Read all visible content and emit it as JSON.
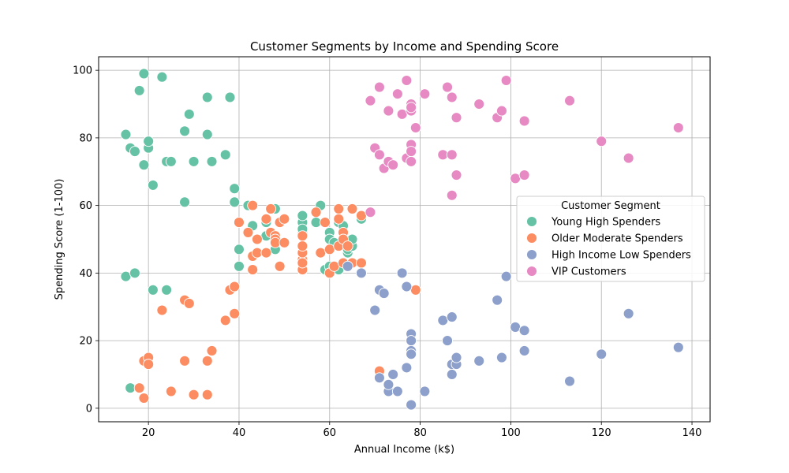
{
  "chart_data": {
    "type": "scatter",
    "title": "Customer Segments by Income and Spending Score",
    "xlabel": "Annual Income (k$)",
    "ylabel": "Spending Score (1-100)",
    "xlim": [
      9,
      144
    ],
    "ylim": [
      -4,
      104
    ],
    "xticks": [
      20,
      40,
      60,
      80,
      100,
      120,
      140
    ],
    "yticks": [
      0,
      20,
      40,
      60,
      80,
      100
    ],
    "grid": true,
    "legend": {
      "title": "Customer Segment",
      "placement": "center-right"
    },
    "series": [
      {
        "name": "Young High Spenders",
        "color": "#66c2a5",
        "points": [
          [
            15,
            39
          ],
          [
            15,
            81
          ],
          [
            16,
            6
          ],
          [
            16,
            77
          ],
          [
            17,
            40
          ],
          [
            17,
            76
          ],
          [
            18,
            94
          ],
          [
            19,
            72
          ],
          [
            19,
            99
          ],
          [
            20,
            77
          ],
          [
            20,
            79
          ],
          [
            21,
            35
          ],
          [
            21,
            66
          ],
          [
            23,
            98
          ],
          [
            24,
            35
          ],
          [
            24,
            73
          ],
          [
            25,
            73
          ],
          [
            28,
            82
          ],
          [
            28,
            61
          ],
          [
            29,
            87
          ],
          [
            30,
            73
          ],
          [
            33,
            92
          ],
          [
            33,
            81
          ],
          [
            34,
            73
          ],
          [
            37,
            75
          ],
          [
            38,
            92
          ],
          [
            39,
            61
          ],
          [
            39,
            65
          ],
          [
            40,
            47
          ],
          [
            40,
            42
          ],
          [
            42,
            60
          ],
          [
            43,
            54
          ],
          [
            46,
            55
          ],
          [
            46,
            51
          ],
          [
            48,
            59
          ],
          [
            48,
            47
          ],
          [
            54,
            52
          ],
          [
            54,
            55
          ],
          [
            54,
            57
          ],
          [
            54,
            53
          ],
          [
            57,
            55
          ],
          [
            58,
            60
          ],
          [
            59,
            41
          ],
          [
            60,
            52
          ],
          [
            60,
            50
          ],
          [
            60,
            42
          ],
          [
            61,
            49
          ],
          [
            61,
            42
          ],
          [
            62,
            41
          ],
          [
            62,
            55
          ],
          [
            63,
            54
          ],
          [
            64,
            46
          ],
          [
            64,
            47
          ],
          [
            65,
            48
          ],
          [
            65,
            50
          ],
          [
            67,
            56
          ]
        ]
      },
      {
        "name": "Older Moderate Spenders",
        "color": "#fc8d62",
        "points": [
          [
            18,
            6
          ],
          [
            19,
            3
          ],
          [
            19,
            14
          ],
          [
            20,
            15
          ],
          [
            20,
            13
          ],
          [
            23,
            29
          ],
          [
            25,
            5
          ],
          [
            28,
            14
          ],
          [
            28,
            32
          ],
          [
            29,
            31
          ],
          [
            30,
            4
          ],
          [
            33,
            4
          ],
          [
            33,
            14
          ],
          [
            34,
            17
          ],
          [
            37,
            26
          ],
          [
            38,
            35
          ],
          [
            39,
            28
          ],
          [
            39,
            36
          ],
          [
            40,
            55
          ],
          [
            42,
            52
          ],
          [
            43,
            60
          ],
          [
            43,
            45
          ],
          [
            43,
            41
          ],
          [
            44,
            50
          ],
          [
            44,
            46
          ],
          [
            46,
            46
          ],
          [
            46,
            56
          ],
          [
            47,
            59
          ],
          [
            47,
            52
          ],
          [
            48,
            51
          ],
          [
            48,
            50
          ],
          [
            48,
            49
          ],
          [
            49,
            55
          ],
          [
            49,
            42
          ],
          [
            50,
            56
          ],
          [
            50,
            49
          ],
          [
            54,
            41
          ],
          [
            54,
            44
          ],
          [
            54,
            46
          ],
          [
            54,
            48
          ],
          [
            54,
            51
          ],
          [
            54,
            43
          ],
          [
            57,
            58
          ],
          [
            58,
            46
          ],
          [
            59,
            55
          ],
          [
            60,
            40
          ],
          [
            60,
            47
          ],
          [
            61,
            42
          ],
          [
            62,
            59
          ],
          [
            62,
            56
          ],
          [
            62,
            48
          ],
          [
            63,
            52
          ],
          [
            63,
            50
          ],
          [
            63,
            43
          ],
          [
            64,
            48
          ],
          [
            65,
            59
          ],
          [
            65,
            43
          ],
          [
            67,
            57
          ],
          [
            67,
            43
          ],
          [
            71,
            11
          ],
          [
            79,
            35
          ]
        ]
      },
      {
        "name": "High Income Low Spenders",
        "color": "#8da0cb",
        "points": [
          [
            64,
            42
          ],
          [
            67,
            40
          ],
          [
            70,
            29
          ],
          [
            71,
            35
          ],
          [
            71,
            9
          ],
          [
            72,
            34
          ],
          [
            73,
            5
          ],
          [
            73,
            7
          ],
          [
            74,
            10
          ],
          [
            75,
            5
          ],
          [
            76,
            40
          ],
          [
            77,
            36
          ],
          [
            77,
            12
          ],
          [
            78,
            22
          ],
          [
            78,
            20
          ],
          [
            78,
            17
          ],
          [
            78,
            16
          ],
          [
            78,
            1
          ],
          [
            81,
            5
          ],
          [
            85,
            26
          ],
          [
            86,
            20
          ],
          [
            87,
            27
          ],
          [
            87,
            13
          ],
          [
            87,
            10
          ],
          [
            88,
            13
          ],
          [
            88,
            15
          ],
          [
            93,
            14
          ],
          [
            97,
            32
          ],
          [
            98,
            15
          ],
          [
            99,
            39
          ],
          [
            101,
            24
          ],
          [
            103,
            23
          ],
          [
            103,
            17
          ],
          [
            113,
            8
          ],
          [
            120,
            16
          ],
          [
            126,
            28
          ],
          [
            137,
            18
          ]
        ]
      },
      {
        "name": "VIP Customers",
        "color": "#e78ac3",
        "points": [
          [
            69,
            91
          ],
          [
            69,
            58
          ],
          [
            70,
            77
          ],
          [
            71,
            95
          ],
          [
            71,
            75
          ],
          [
            72,
            71
          ],
          [
            73,
            88
          ],
          [
            73,
            73
          ],
          [
            74,
            72
          ],
          [
            75,
            93
          ],
          [
            76,
            87
          ],
          [
            77,
            97
          ],
          [
            77,
            74
          ],
          [
            78,
            90
          ],
          [
            78,
            88
          ],
          [
            78,
            89
          ],
          [
            78,
            78
          ],
          [
            78,
            76
          ],
          [
            78,
            73
          ],
          [
            79,
            83
          ],
          [
            81,
            93
          ],
          [
            85,
            75
          ],
          [
            86,
            95
          ],
          [
            87,
            92
          ],
          [
            87,
            75
          ],
          [
            87,
            63
          ],
          [
            88,
            86
          ],
          [
            88,
            69
          ],
          [
            93,
            90
          ],
          [
            97,
            86
          ],
          [
            98,
            88
          ],
          [
            99,
            97
          ],
          [
            101,
            68
          ],
          [
            103,
            85
          ],
          [
            103,
            69
          ],
          [
            113,
            91
          ],
          [
            120,
            79
          ],
          [
            126,
            74
          ],
          [
            137,
            83
          ]
        ]
      }
    ]
  }
}
